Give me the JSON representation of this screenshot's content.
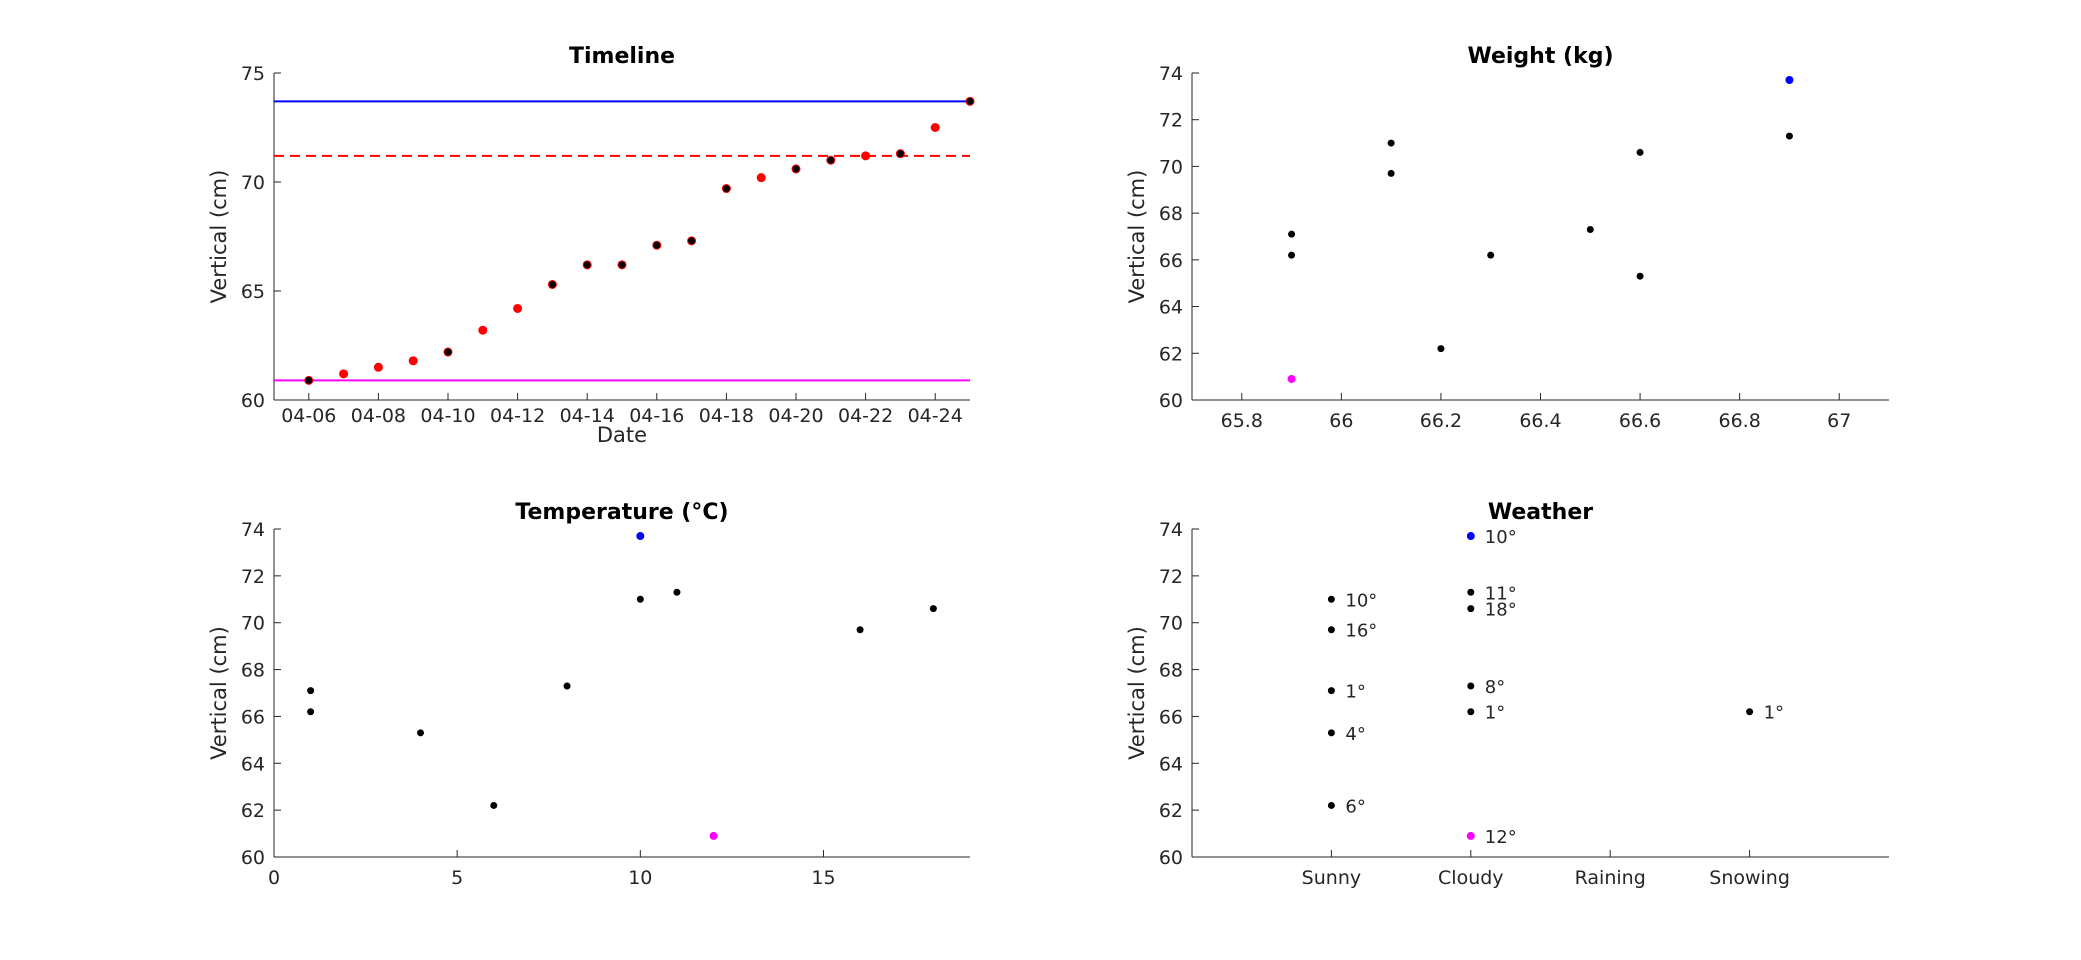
{
  "chart_data": [
    {
      "type": "scatter",
      "title": "Timeline",
      "xlabel": "Date",
      "ylabel": "Vertical (cm)",
      "xlim": [
        "2023-04-05",
        "2023-04-25"
      ],
      "ylim": [
        60,
        75
      ],
      "x_ticks": [
        "04-06",
        "04-08",
        "04-10",
        "04-12",
        "04-14",
        "04-16",
        "04-18",
        "04-20",
        "04-22",
        "04-24"
      ],
      "y_ticks": [
        60,
        65,
        70,
        75
      ],
      "reference_lines": [
        {
          "y": 73.7,
          "color": "#0000ff",
          "style": "solid"
        },
        {
          "y": 71.2,
          "color": "#ff0000",
          "style": "dashed"
        },
        {
          "y": 60.9,
          "color": "#ff00ff",
          "style": "solid"
        }
      ],
      "series": [
        {
          "color": "#ff0000",
          "x": [
            "2023-04-06",
            "2023-04-07",
            "2023-04-08",
            "2023-04-09",
            "2023-04-10",
            "2023-04-11",
            "2023-04-12",
            "2023-04-13",
            "2023-04-14",
            "2023-04-15",
            "2023-04-16",
            "2023-04-17",
            "2023-04-18",
            "2023-04-19",
            "2023-04-20",
            "2023-04-21",
            "2023-04-22",
            "2023-04-23",
            "2023-04-24",
            "2023-04-25"
          ],
          "values": [
            60.9,
            61.2,
            61.5,
            61.8,
            62.2,
            63.2,
            64.2,
            65.3,
            66.2,
            66.2,
            67.1,
            67.3,
            69.7,
            70.2,
            70.6,
            71.0,
            71.2,
            71.3,
            72.5,
            73.7
          ]
        },
        {
          "color": "#000000",
          "x": [
            "2023-04-06",
            "2023-04-10",
            "2023-04-13",
            "2023-04-14",
            "2023-04-15",
            "2023-04-16",
            "2023-04-17",
            "2023-04-18",
            "2023-04-20",
            "2023-04-21",
            "2023-04-23",
            "2023-04-25"
          ],
          "values": [
            60.9,
            62.2,
            65.3,
            66.2,
            66.2,
            67.1,
            67.3,
            69.7,
            70.6,
            71.0,
            71.3,
            73.7
          ]
        }
      ]
    },
    {
      "type": "scatter",
      "title": "Weight (kg)",
      "xlabel": "",
      "ylabel": "Vertical (cm)",
      "xlim": [
        65.7,
        67.1
      ],
      "ylim": [
        60,
        74
      ],
      "x_ticks": [
        "65.8",
        "66",
        "66.2",
        "66.4",
        "66.6",
        "66.8",
        "67"
      ],
      "y_ticks": [
        60,
        62,
        64,
        66,
        68,
        70,
        72,
        74
      ],
      "points": [
        {
          "x": 65.9,
          "y": 67.1,
          "color": "#000000"
        },
        {
          "x": 65.9,
          "y": 66.2,
          "color": "#000000"
        },
        {
          "x": 65.9,
          "y": 60.9,
          "color": "#ff00ff"
        },
        {
          "x": 66.1,
          "y": 71.0,
          "color": "#000000"
        },
        {
          "x": 66.1,
          "y": 69.7,
          "color": "#000000"
        },
        {
          "x": 66.2,
          "y": 62.2,
          "color": "#000000"
        },
        {
          "x": 66.3,
          "y": 66.2,
          "color": "#000000"
        },
        {
          "x": 66.5,
          "y": 67.3,
          "color": "#000000"
        },
        {
          "x": 66.6,
          "y": 70.6,
          "color": "#000000"
        },
        {
          "x": 66.6,
          "y": 65.3,
          "color": "#000000"
        },
        {
          "x": 66.9,
          "y": 73.7,
          "color": "#0000ff"
        },
        {
          "x": 66.9,
          "y": 71.3,
          "color": "#000000"
        }
      ]
    },
    {
      "type": "scatter",
      "title": "Temperature (°C)",
      "xlabel": "",
      "ylabel": "Vertical (cm)",
      "xlim": [
        0,
        19
      ],
      "ylim": [
        60,
        74
      ],
      "x_ticks": [
        "0",
        "5",
        "10",
        "15"
      ],
      "y_ticks": [
        60,
        62,
        64,
        66,
        68,
        70,
        72,
        74
      ],
      "points": [
        {
          "x": 1,
          "y": 67.1,
          "color": "#000000"
        },
        {
          "x": 1,
          "y": 66.2,
          "color": "#000000"
        },
        {
          "x": 4,
          "y": 65.3,
          "color": "#000000"
        },
        {
          "x": 6,
          "y": 62.2,
          "color": "#000000"
        },
        {
          "x": 8,
          "y": 67.3,
          "color": "#000000"
        },
        {
          "x": 10,
          "y": 73.7,
          "color": "#0000ff"
        },
        {
          "x": 10,
          "y": 71.0,
          "color": "#000000"
        },
        {
          "x": 11,
          "y": 71.3,
          "color": "#000000"
        },
        {
          "x": 12,
          "y": 60.9,
          "color": "#ff00ff"
        },
        {
          "x": 16,
          "y": 69.7,
          "color": "#000000"
        },
        {
          "x": 18,
          "y": 70.6,
          "color": "#000000"
        }
      ]
    },
    {
      "type": "scatter",
      "title": "Weather",
      "xlabel": "",
      "ylabel": "Vertical (cm)",
      "categories": [
        "Sunny",
        "Cloudy",
        "Raining",
        "Snowing"
      ],
      "ylim": [
        60,
        74
      ],
      "y_ticks": [
        60,
        62,
        64,
        66,
        68,
        70,
        72,
        74
      ],
      "points": [
        {
          "category": "Sunny",
          "y": 71.0,
          "label": "10°",
          "color": "#000000"
        },
        {
          "category": "Sunny",
          "y": 69.7,
          "label": "16°",
          "color": "#000000"
        },
        {
          "category": "Sunny",
          "y": 67.1,
          "label": "1°",
          "color": "#000000"
        },
        {
          "category": "Sunny",
          "y": 65.3,
          "label": "4°",
          "color": "#000000"
        },
        {
          "category": "Sunny",
          "y": 62.2,
          "label": "6°",
          "color": "#000000"
        },
        {
          "category": "Cloudy",
          "y": 73.7,
          "label": "10°",
          "color": "#0000ff"
        },
        {
          "category": "Cloudy",
          "y": 71.3,
          "label": "11°",
          "color": "#000000"
        },
        {
          "category": "Cloudy",
          "y": 70.6,
          "label": "18°",
          "color": "#000000"
        },
        {
          "category": "Cloudy",
          "y": 67.3,
          "label": "8°",
          "color": "#000000"
        },
        {
          "category": "Cloudy",
          "y": 66.2,
          "label": "1°",
          "color": "#000000"
        },
        {
          "category": "Cloudy",
          "y": 60.9,
          "label": "12°",
          "color": "#ff00ff"
        },
        {
          "category": "Snowing",
          "y": 66.2,
          "label": "1°",
          "color": "#000000"
        }
      ]
    }
  ]
}
